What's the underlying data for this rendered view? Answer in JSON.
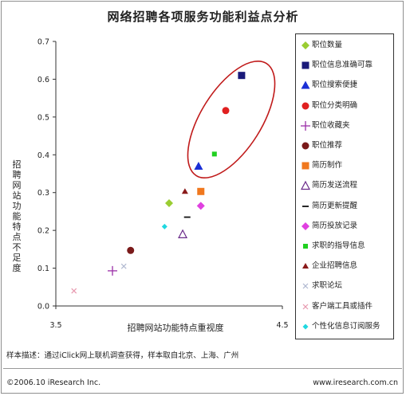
{
  "chart_data": {
    "type": "scatter",
    "title": "网络招聘各项服务功能利益点分析",
    "xlabel": "招聘网站功能特点重视度",
    "ylabel": "招聘网站功能特点不足度",
    "xlim": [
      3.5,
      4.5
    ],
    "ylim": [
      0.0,
      0.7
    ],
    "x_ticks": [
      "3.5",
      "4.5"
    ],
    "y_ticks": [
      "0.0",
      "0.1",
      "0.2",
      "0.3",
      "0.4",
      "0.5",
      "0.6",
      "0.7"
    ],
    "grid": false,
    "legend_position": "right",
    "series": [
      {
        "name": "职位数量",
        "color": "#9acd32",
        "marker": "diamond",
        "x": 4.0,
        "y": 0.272
      },
      {
        "name": "职位信息准确可靠",
        "color": "#1a1a7a",
        "marker": "square",
        "x": 4.32,
        "y": 0.61
      },
      {
        "name": "职位搜索便捷",
        "color": "#1a2fd6",
        "marker": "triangle",
        "x": 4.13,
        "y": 0.37
      },
      {
        "name": "职位分类明确",
        "color": "#e02020",
        "marker": "circle",
        "x": 4.25,
        "y": 0.517
      },
      {
        "name": "职位收藏夹",
        "color": "#9b2fa8",
        "marker": "plus",
        "x": 3.75,
        "y": 0.093
      },
      {
        "name": "职位推荐",
        "color": "#7a1a1a",
        "marker": "circle",
        "x": 3.83,
        "y": 0.147
      },
      {
        "name": "简历制作",
        "color": "#f0781e",
        "marker": "square",
        "x": 4.14,
        "y": 0.303
      },
      {
        "name": "简历发送流程",
        "color": "#6a2a8a",
        "marker": "triangle-open",
        "x": 4.06,
        "y": 0.19
      },
      {
        "name": "简历更新提醒",
        "color": "#111111",
        "marker": "dash",
        "x": 4.08,
        "y": 0.235
      },
      {
        "name": "简历投放记录",
        "color": "#e040e0",
        "marker": "diamond",
        "x": 4.14,
        "y": 0.265
      },
      {
        "name": "求职的指导信息",
        "color": "#20d020",
        "marker": "square-small",
        "x": 4.2,
        "y": 0.402
      },
      {
        "name": "企业招聘信息",
        "color": "#8a1a1a",
        "marker": "triangle-small",
        "x": 4.07,
        "y": 0.303
      },
      {
        "name": "求职论坛",
        "color": "#b0b8d0",
        "marker": "x",
        "x": 3.8,
        "y": 0.105
      },
      {
        "name": "客户端工具或插件",
        "color": "#e89ab0",
        "marker": "x",
        "x": 3.58,
        "y": 0.04
      },
      {
        "name": "个性化信息订阅服务",
        "color": "#20d8e0",
        "marker": "diamond-small",
        "x": 3.98,
        "y": 0.21
      }
    ],
    "annotations": [
      {
        "type": "ellipse",
        "color": "#c01a1a",
        "description": "highlight"
      }
    ]
  },
  "footer": {
    "note": "样本描述：通过iClick网上联机调查获得，样本取自北京、上海、广州",
    "copyright": "©2006.10 iResearch Inc.",
    "website": "www.iresearch.com.cn"
  }
}
